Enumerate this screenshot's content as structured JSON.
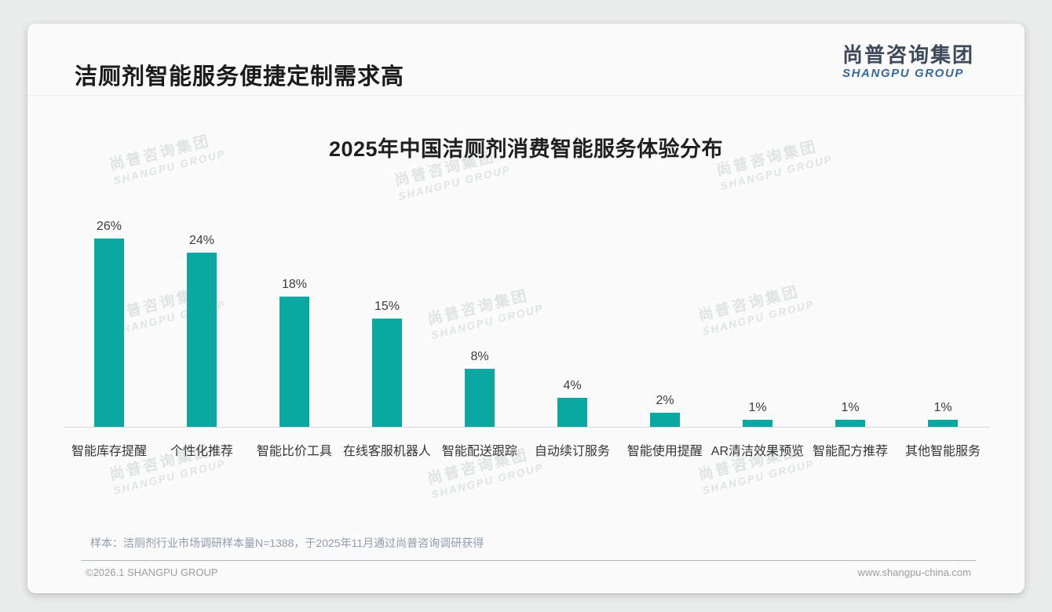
{
  "page": {
    "title": "洁厕剂智能服务便捷定制需求高",
    "logo": {
      "cn": "尚普咨询集团",
      "en": "SHANGPU GROUP"
    },
    "watermark": {
      "cn": "尚普咨询集团",
      "en": "SHANGPU GROUP"
    },
    "footnote": "样本：洁厕剂行业市场调研样本量N=1388，于2025年11月通过尚普咨询调研获得",
    "footer": {
      "left": "©2026.1 SHANGPU GROUP",
      "right": "www.shangpu-china.com"
    }
  },
  "chart_data": {
    "type": "bar",
    "title": "2025年中国洁厕剂消费智能服务体验分布",
    "categories": [
      "智能库存提醒",
      "个性化推荐",
      "智能比价工具",
      "在线客服机器人",
      "智能配送跟踪",
      "自动续订服务",
      "智能使用提醒",
      "AR清洁效果预览",
      "智能配方推荐",
      "其他智能服务"
    ],
    "values": [
      26,
      24,
      18,
      15,
      8,
      4,
      2,
      1,
      1,
      1
    ],
    "data_labels": [
      "26%",
      "24%",
      "18%",
      "15%",
      "8%",
      "4%",
      "2%",
      "1%",
      "1%",
      "1%"
    ],
    "unit": "%",
    "bar_color": "#0aa8a1",
    "ylim": [
      0,
      28
    ],
    "grid": false,
    "legend": "none",
    "xlabel": "",
    "ylabel": ""
  }
}
